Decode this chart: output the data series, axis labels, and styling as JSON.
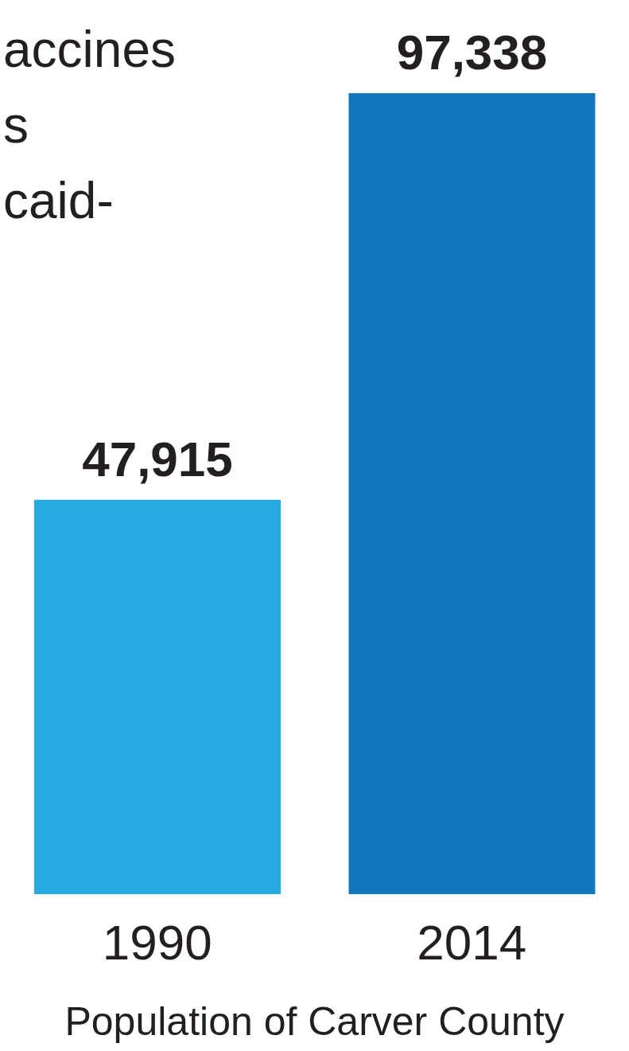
{
  "chart_data": {
    "type": "bar",
    "xlabel": "Population of Carver County",
    "categories": [
      "1990",
      "2014"
    ],
    "values": [
      47915,
      97338
    ],
    "colors": [
      "#25a9e0",
      "#1176bc"
    ],
    "value_labels": [
      "47,915",
      "97,338"
    ],
    "annotations": [
      "accines",
      "s",
      "caid-"
    ]
  }
}
